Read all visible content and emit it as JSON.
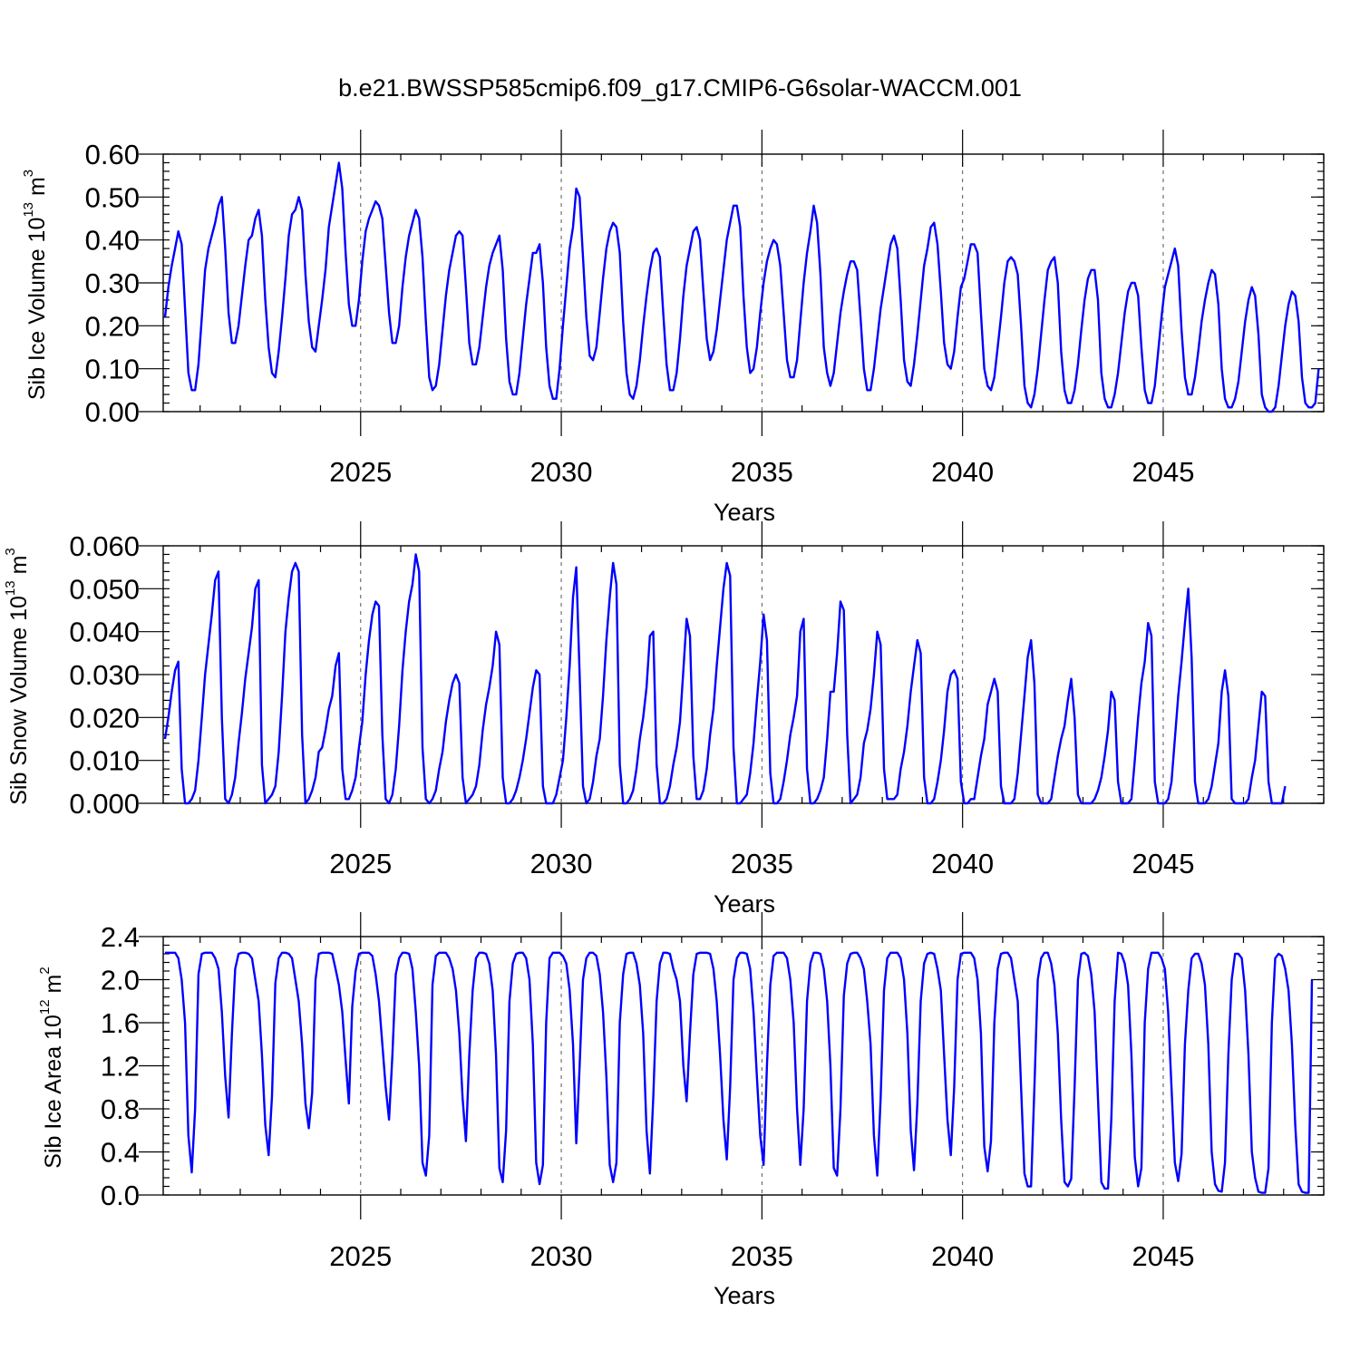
{
  "title": "b.e21.BWSSP585cmip6.f09_g17.CMIP6-G6solar-WACCM.001",
  "line_color": "#0000ff",
  "chart_data": [
    {
      "type": "line",
      "ylabel_main": "Sib Ice Volume 10",
      "ylabel_sup": "13",
      "ylabel_unit": " m",
      "ylabel_unit_sup": "3",
      "xlabel": "Years",
      "x_start": 2020.125,
      "x_step": 0.08333,
      "xlim": [
        2020.08,
        2049.0
      ],
      "xticks": [
        2025,
        2030,
        2035,
        2040,
        2045
      ],
      "xtick_labels": [
        "2025",
        "2030",
        "2035",
        "2040",
        "2045"
      ],
      "ylim": [
        0.0,
        0.6
      ],
      "yticks": [
        0.0,
        0.1,
        0.2,
        0.3,
        0.4,
        0.5,
        0.6
      ],
      "ytick_labels": [
        "0.00",
        "0.10",
        "0.20",
        "0.30",
        "0.40",
        "0.50",
        "0.60"
      ],
      "yminor_step": 0.02,
      "grid_x": true,
      "values": [
        0.22,
        0.29,
        0.34,
        0.38,
        0.42,
        0.39,
        0.24,
        0.09,
        0.05,
        0.05,
        0.11,
        0.22,
        0.33,
        0.38,
        0.41,
        0.44,
        0.48,
        0.5,
        0.38,
        0.23,
        0.16,
        0.16,
        0.2,
        0.27,
        0.34,
        0.4,
        0.41,
        0.45,
        0.47,
        0.41,
        0.26,
        0.15,
        0.09,
        0.08,
        0.14,
        0.22,
        0.31,
        0.41,
        0.46,
        0.47,
        0.5,
        0.47,
        0.32,
        0.21,
        0.15,
        0.14,
        0.2,
        0.26,
        0.33,
        0.43,
        0.48,
        0.53,
        0.58,
        0.52,
        0.37,
        0.25,
        0.2,
        0.2,
        0.26,
        0.35,
        0.42,
        0.45,
        0.47,
        0.49,
        0.48,
        0.45,
        0.34,
        0.23,
        0.16,
        0.16,
        0.2,
        0.29,
        0.36,
        0.41,
        0.44,
        0.47,
        0.45,
        0.36,
        0.21,
        0.08,
        0.05,
        0.06,
        0.11,
        0.19,
        0.27,
        0.33,
        0.37,
        0.41,
        0.42,
        0.41,
        0.29,
        0.16,
        0.11,
        0.11,
        0.15,
        0.22,
        0.29,
        0.34,
        0.37,
        0.39,
        0.41,
        0.33,
        0.17,
        0.07,
        0.04,
        0.04,
        0.09,
        0.17,
        0.25,
        0.31,
        0.37,
        0.37,
        0.39,
        0.3,
        0.15,
        0.06,
        0.03,
        0.03,
        0.1,
        0.2,
        0.29,
        0.38,
        0.43,
        0.52,
        0.5,
        0.36,
        0.22,
        0.13,
        0.12,
        0.15,
        0.23,
        0.31,
        0.38,
        0.42,
        0.44,
        0.43,
        0.37,
        0.21,
        0.09,
        0.04,
        0.03,
        0.06,
        0.12,
        0.2,
        0.27,
        0.33,
        0.37,
        0.38,
        0.36,
        0.23,
        0.11,
        0.05,
        0.05,
        0.09,
        0.17,
        0.27,
        0.34,
        0.38,
        0.42,
        0.43,
        0.4,
        0.28,
        0.17,
        0.12,
        0.14,
        0.19,
        0.26,
        0.33,
        0.4,
        0.44,
        0.48,
        0.48,
        0.43,
        0.27,
        0.15,
        0.09,
        0.1,
        0.15,
        0.23,
        0.3,
        0.35,
        0.38,
        0.4,
        0.39,
        0.34,
        0.23,
        0.12,
        0.08,
        0.08,
        0.12,
        0.21,
        0.3,
        0.37,
        0.42,
        0.48,
        0.44,
        0.32,
        0.15,
        0.09,
        0.06,
        0.09,
        0.16,
        0.23,
        0.28,
        0.32,
        0.35,
        0.35,
        0.33,
        0.22,
        0.1,
        0.05,
        0.05,
        0.1,
        0.17,
        0.24,
        0.29,
        0.34,
        0.39,
        0.41,
        0.38,
        0.26,
        0.12,
        0.07,
        0.06,
        0.11,
        0.18,
        0.26,
        0.34,
        0.38,
        0.43,
        0.44,
        0.39,
        0.28,
        0.16,
        0.11,
        0.1,
        0.14,
        0.22,
        0.29,
        0.31,
        0.35,
        0.39,
        0.39,
        0.37,
        0.23,
        0.1,
        0.06,
        0.05,
        0.08,
        0.15,
        0.22,
        0.3,
        0.35,
        0.36,
        0.35,
        0.32,
        0.2,
        0.06,
        0.02,
        0.01,
        0.04,
        0.1,
        0.18,
        0.26,
        0.33,
        0.35,
        0.36,
        0.3,
        0.14,
        0.05,
        0.02,
        0.02,
        0.05,
        0.11,
        0.19,
        0.26,
        0.31,
        0.33,
        0.33,
        0.26,
        0.09,
        0.03,
        0.01,
        0.01,
        0.04,
        0.09,
        0.16,
        0.23,
        0.28,
        0.3,
        0.3,
        0.27,
        0.15,
        0.05,
        0.02,
        0.02,
        0.06,
        0.14,
        0.22,
        0.29,
        0.32,
        0.35,
        0.38,
        0.34,
        0.19,
        0.08,
        0.04,
        0.04,
        0.08,
        0.14,
        0.21,
        0.26,
        0.3,
        0.33,
        0.32,
        0.25,
        0.1,
        0.03,
        0.01,
        0.01,
        0.03,
        0.07,
        0.14,
        0.21,
        0.26,
        0.29,
        0.27,
        0.18,
        0.04,
        0.01,
        0.0,
        0.0,
        0.01,
        0.06,
        0.13,
        0.2,
        0.25,
        0.28,
        0.27,
        0.21,
        0.08,
        0.02,
        0.01,
        0.01,
        0.02,
        0.1
      ]
    },
    {
      "type": "line",
      "ylabel_main": "Sib Snow Volume 10",
      "ylabel_sup": "13",
      "ylabel_unit": " m",
      "ylabel_unit_sup": "3",
      "xlabel": "Years",
      "x_start": 2020.125,
      "x_step": 0.08333,
      "xlim": [
        2020.08,
        2049.0
      ],
      "xticks": [
        2025,
        2030,
        2035,
        2040,
        2045
      ],
      "xtick_labels": [
        "2025",
        "2030",
        "2035",
        "2040",
        "2045"
      ],
      "ylim": [
        0.0,
        0.06
      ],
      "yticks": [
        0.0,
        0.01,
        0.02,
        0.03,
        0.04,
        0.05,
        0.06
      ],
      "ytick_labels": [
        "0.000",
        "0.010",
        "0.020",
        "0.030",
        "0.040",
        "0.050",
        "0.060"
      ],
      "yminor_step": 0.002,
      "grid_x": true,
      "values": [
        0.015,
        0.02,
        0.026,
        0.031,
        0.033,
        0.008,
        0.0,
        0.0,
        0.001,
        0.003,
        0.01,
        0.02,
        0.03,
        0.037,
        0.044,
        0.052,
        0.054,
        0.02,
        0.001,
        0.0,
        0.002,
        0.006,
        0.014,
        0.021,
        0.029,
        0.035,
        0.041,
        0.05,
        0.052,
        0.009,
        0.0,
        0.001,
        0.002,
        0.004,
        0.012,
        0.025,
        0.04,
        0.048,
        0.054,
        0.056,
        0.054,
        0.016,
        0.0,
        0.001,
        0.003,
        0.006,
        0.012,
        0.013,
        0.017,
        0.022,
        0.025,
        0.032,
        0.035,
        0.008,
        0.001,
        0.001,
        0.003,
        0.006,
        0.013,
        0.019,
        0.03,
        0.038,
        0.044,
        0.047,
        0.046,
        0.016,
        0.001,
        0.0,
        0.002,
        0.008,
        0.018,
        0.031,
        0.04,
        0.047,
        0.051,
        0.058,
        0.054,
        0.013,
        0.001,
        0.0,
        0.001,
        0.003,
        0.008,
        0.012,
        0.019,
        0.024,
        0.028,
        0.03,
        0.028,
        0.006,
        0.0,
        0.001,
        0.002,
        0.004,
        0.009,
        0.017,
        0.023,
        0.027,
        0.032,
        0.04,
        0.037,
        0.006,
        0.0,
        0.0,
        0.001,
        0.003,
        0.006,
        0.01,
        0.015,
        0.021,
        0.027,
        0.031,
        0.03,
        0.004,
        0.0,
        0.0,
        0.0,
        0.002,
        0.006,
        0.01,
        0.02,
        0.032,
        0.048,
        0.055,
        0.03,
        0.004,
        0.0,
        0.001,
        0.005,
        0.011,
        0.015,
        0.025,
        0.038,
        0.048,
        0.056,
        0.051,
        0.009,
        0.0,
        0.0,
        0.001,
        0.003,
        0.008,
        0.015,
        0.02,
        0.027,
        0.039,
        0.04,
        0.009,
        0.0,
        0.0,
        0.001,
        0.004,
        0.009,
        0.013,
        0.019,
        0.031,
        0.043,
        0.039,
        0.011,
        0.001,
        0.001,
        0.003,
        0.008,
        0.016,
        0.022,
        0.032,
        0.041,
        0.05,
        0.056,
        0.053,
        0.013,
        0.0,
        0.0,
        0.001,
        0.002,
        0.007,
        0.014,
        0.024,
        0.033,
        0.044,
        0.038,
        0.007,
        0.0,
        0.0,
        0.001,
        0.005,
        0.01,
        0.016,
        0.02,
        0.025,
        0.04,
        0.043,
        0.008,
        0.0,
        0.0,
        0.001,
        0.003,
        0.006,
        0.015,
        0.026,
        0.026,
        0.035,
        0.047,
        0.045,
        0.016,
        0.0,
        0.001,
        0.002,
        0.006,
        0.014,
        0.017,
        0.022,
        0.03,
        0.04,
        0.037,
        0.008,
        0.001,
        0.001,
        0.001,
        0.002,
        0.008,
        0.012,
        0.018,
        0.026,
        0.032,
        0.038,
        0.035,
        0.006,
        0.0,
        0.0,
        0.001,
        0.005,
        0.01,
        0.017,
        0.026,
        0.03,
        0.031,
        0.029,
        0.005,
        0.0,
        0.0,
        0.001,
        0.001,
        0.006,
        0.011,
        0.015,
        0.023,
        0.026,
        0.029,
        0.026,
        0.004,
        0.0,
        0.0,
        0.0,
        0.001,
        0.007,
        0.016,
        0.025,
        0.034,
        0.038,
        0.028,
        0.002,
        0.0,
        0.0,
        0.0,
        0.001,
        0.006,
        0.011,
        0.015,
        0.018,
        0.024,
        0.029,
        0.02,
        0.002,
        0.0,
        0.0,
        0.0,
        0.0,
        0.001,
        0.003,
        0.006,
        0.011,
        0.017,
        0.026,
        0.024,
        0.005,
        0.0,
        0.0,
        0.0,
        0.001,
        0.01,
        0.02,
        0.028,
        0.033,
        0.042,
        0.039,
        0.005,
        0.0,
        0.0,
        0.0,
        0.001,
        0.005,
        0.015,
        0.025,
        0.033,
        0.042,
        0.05,
        0.034,
        0.005,
        0.0,
        0.0,
        0.0,
        0.001,
        0.004,
        0.009,
        0.014,
        0.026,
        0.031,
        0.025,
        0.001,
        0.0,
        0.0,
        0.0,
        0.0,
        0.001,
        0.006,
        0.01,
        0.018,
        0.026,
        0.025,
        0.005,
        0.0,
        0.0,
        0.0,
        0.0,
        0.004
      ]
    },
    {
      "type": "line",
      "ylabel_main": "Sib Ice Area 10",
      "ylabel_sup": "12",
      "ylabel_unit": " m",
      "ylabel_unit_sup": "2",
      "xlabel": "Years",
      "x_start": 2020.125,
      "x_step": 0.08333,
      "xlim": [
        2020.08,
        2049.0
      ],
      "xticks": [
        2025,
        2030,
        2035,
        2040,
        2045
      ],
      "xtick_labels": [
        "2025",
        "2030",
        "2035",
        "2040",
        "2045"
      ],
      "ylim": [
        0.0,
        2.4
      ],
      "yticks": [
        0.0,
        0.4,
        0.8,
        1.2,
        1.6,
        2.0,
        2.4
      ],
      "ytick_labels": [
        "0.0",
        "0.4",
        "0.8",
        "1.2",
        "1.6",
        "2.0",
        "2.4"
      ],
      "yminor_step": 0.08,
      "grid_x": true,
      "values": [
        2.25,
        2.25,
        2.25,
        2.25,
        2.2,
        2.0,
        1.6,
        0.55,
        0.21,
        0.8,
        2.05,
        2.24,
        2.25,
        2.25,
        2.25,
        2.2,
        2.1,
        1.7,
        1.1,
        0.72,
        1.5,
        2.1,
        2.24,
        2.25,
        2.25,
        2.24,
        2.2,
        2.0,
        1.8,
        1.3,
        0.65,
        0.37,
        0.92,
        1.97,
        2.2,
        2.25,
        2.25,
        2.24,
        2.2,
        2.0,
        1.8,
        1.4,
        0.85,
        0.62,
        0.95,
        2.0,
        2.24,
        2.25,
        2.25,
        2.25,
        2.24,
        2.1,
        1.95,
        1.7,
        1.25,
        0.85,
        1.75,
        2.08,
        2.24,
        2.25,
        2.25,
        2.25,
        2.22,
        2.05,
        1.8,
        1.4,
        1.0,
        0.7,
        1.3,
        2.05,
        2.2,
        2.25,
        2.25,
        2.24,
        2.1,
        1.7,
        1.2,
        0.3,
        0.18,
        0.55,
        1.95,
        2.22,
        2.25,
        2.25,
        2.25,
        2.2,
        2.1,
        1.9,
        1.5,
        0.9,
        0.5,
        1.3,
        1.9,
        2.2,
        2.25,
        2.25,
        2.24,
        2.15,
        1.9,
        1.3,
        0.25,
        0.12,
        0.6,
        1.8,
        2.15,
        2.24,
        2.25,
        2.25,
        2.2,
        2.0,
        1.4,
        0.3,
        0.1,
        0.28,
        1.6,
        2.2,
        2.25,
        2.25,
        2.25,
        2.22,
        2.15,
        1.9,
        1.4,
        0.48,
        1.2,
        2.0,
        2.2,
        2.25,
        2.25,
        2.22,
        2.05,
        1.7,
        1.1,
        0.28,
        0.12,
        0.3,
        1.6,
        2.05,
        2.24,
        2.25,
        2.25,
        2.15,
        1.95,
        1.5,
        0.6,
        0.2,
        0.9,
        1.8,
        2.15,
        2.25,
        2.25,
        2.24,
        2.1,
        2.0,
        1.8,
        1.2,
        0.87,
        1.5,
        2.05,
        2.24,
        2.25,
        2.25,
        2.25,
        2.24,
        2.1,
        1.8,
        1.3,
        0.7,
        0.33,
        1.0,
        2.0,
        2.2,
        2.25,
        2.25,
        2.24,
        2.1,
        1.7,
        1.1,
        0.55,
        0.28,
        1.2,
        1.95,
        2.22,
        2.25,
        2.25,
        2.25,
        2.2,
        2.0,
        1.6,
        0.8,
        0.28,
        0.8,
        1.8,
        2.15,
        2.25,
        2.25,
        2.24,
        2.1,
        1.8,
        1.2,
        0.25,
        0.18,
        0.8,
        1.85,
        2.15,
        2.24,
        2.25,
        2.25,
        2.2,
        2.1,
        1.8,
        1.4,
        0.55,
        0.18,
        0.9,
        1.9,
        2.2,
        2.25,
        2.25,
        2.25,
        2.2,
        2.0,
        1.5,
        0.6,
        0.23,
        0.85,
        1.8,
        2.15,
        2.24,
        2.25,
        2.24,
        2.1,
        1.9,
        1.3,
        0.7,
        0.37,
        1.0,
        2.0,
        2.24,
        2.25,
        2.25,
        2.25,
        2.2,
        2.0,
        1.5,
        0.45,
        0.22,
        0.5,
        1.6,
        2.1,
        2.24,
        2.25,
        2.25,
        2.2,
        2.0,
        1.8,
        1.0,
        0.2,
        0.08,
        0.08,
        1.0,
        2.0,
        2.2,
        2.25,
        2.25,
        2.15,
        1.95,
        1.5,
        0.7,
        0.12,
        0.08,
        0.15,
        1.0,
        2.0,
        2.24,
        2.25,
        2.22,
        2.05,
        1.7,
        0.9,
        0.12,
        0.06,
        0.06,
        0.7,
        1.8,
        2.25,
        2.24,
        2.15,
        1.95,
        1.3,
        0.35,
        0.08,
        0.25,
        1.6,
        2.1,
        2.25,
        2.25,
        2.25,
        2.2,
        2.1,
        1.7,
        1.0,
        0.3,
        0.13,
        0.38,
        1.4,
        1.9,
        2.2,
        2.24,
        2.24,
        2.15,
        1.95,
        1.4,
        0.4,
        0.1,
        0.04,
        0.03,
        0.3,
        1.3,
        2.0,
        2.24,
        2.24,
        2.2,
        1.9,
        1.3,
        0.4,
        0.16,
        0.03,
        0.02,
        0.02,
        0.25,
        1.6,
        2.2,
        2.24,
        2.22,
        2.1,
        1.9,
        1.4,
        0.65,
        0.1,
        0.03,
        0.02,
        0.02,
        2.0
      ]
    }
  ]
}
